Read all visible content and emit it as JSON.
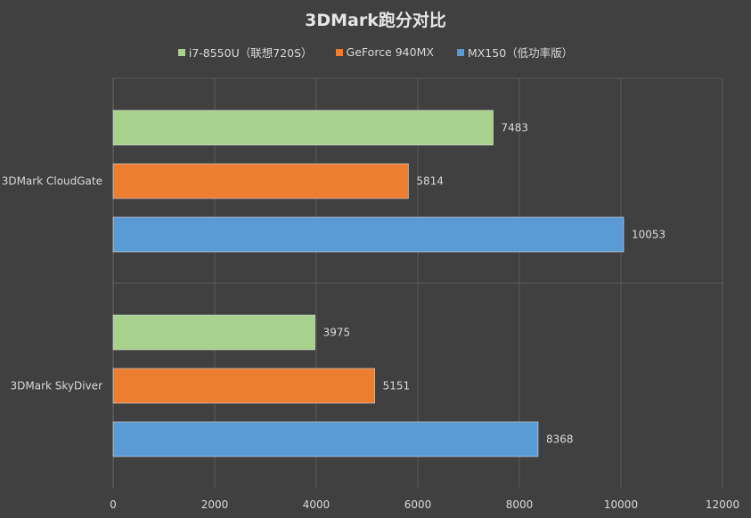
{
  "chart_data": {
    "type": "bar",
    "orientation": "horizontal",
    "title": "3DMark跑分对比",
    "categories": [
      "3DMark CloudGate",
      "3DMark SkyDiver"
    ],
    "series": [
      {
        "name": "i7-8550U（联想720S）",
        "color": "#a9d18e",
        "values": [
          7483,
          3975
        ]
      },
      {
        "name": "GeForce 940MX",
        "color": "#ed7d31",
        "values": [
          5814,
          5151
        ]
      },
      {
        "name": "MX150（低功率版）",
        "color": "#5b9bd5",
        "values": [
          10053,
          8368
        ]
      }
    ],
    "xlim": [
      0,
      12000
    ],
    "xticks": [
      0,
      2000,
      4000,
      6000,
      8000,
      10000,
      12000
    ],
    "grid": true,
    "legend_position": "top"
  }
}
